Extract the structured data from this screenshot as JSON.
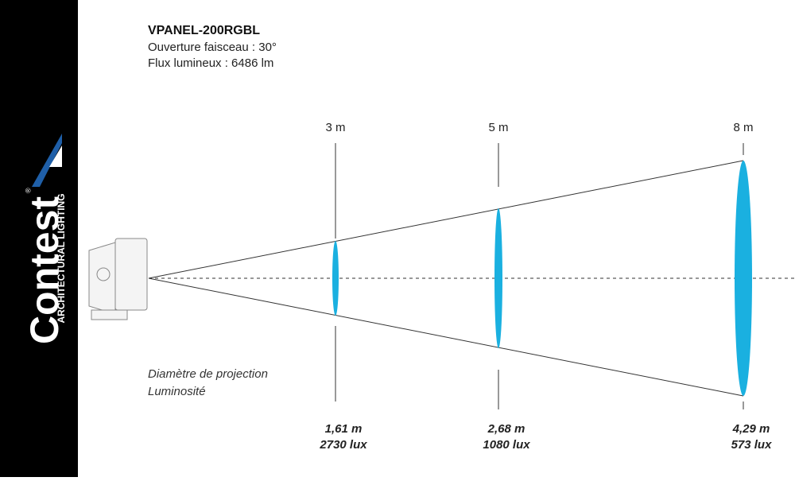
{
  "brand": {
    "name": "Contest",
    "registered": "®",
    "tagline": "ARCHITECTURAL LIGHTING"
  },
  "header": {
    "title": "VPANEL-200RGBL",
    "beam": "Ouverture faisceau : 30°",
    "flux": "Flux lumineux : 6486  lm"
  },
  "legend": {
    "diameter": "Diamètre de projection",
    "luminosity": "Luminosité"
  },
  "distances": [
    {
      "label": "3 m",
      "diameter": "1,61 m",
      "illuminance": "2730 lux"
    },
    {
      "label": "5 m",
      "diameter": "2,68 m",
      "illuminance": "1080 lux"
    },
    {
      "label": "8 m",
      "diameter": "4,29 m",
      "illuminance": "573 lux"
    }
  ]
}
